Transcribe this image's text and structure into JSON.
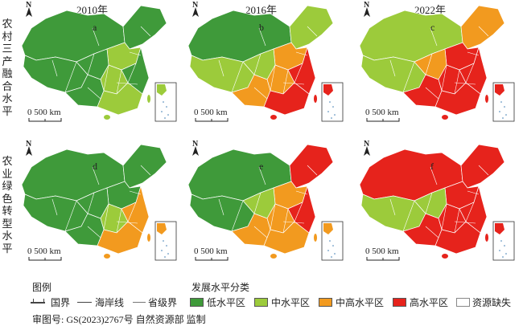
{
  "row_labels": [
    "农村三产融合水平",
    "农业绿色转型水平"
  ],
  "years": [
    "2010年",
    "2016年",
    "2022年"
  ],
  "panels": [
    {
      "label": "a",
      "palette": [
        "#3f9a3a",
        "#3f9a3a",
        "#3f9a3a",
        "#9ccb3b",
        "#3f9a3a",
        "#9ccb3b",
        "#3f9a3a",
        "#3f9a3a",
        "#9ccb3b"
      ]
    },
    {
      "label": "b",
      "palette": [
        "#3f9a3a",
        "#9ccb3b",
        "#9ccb3b",
        "#f29a1f",
        "#9ccb3b",
        "#f29a1f",
        "#e6231c",
        "#f29a1f",
        "#e6231c"
      ]
    },
    {
      "label": "c",
      "palette": [
        "#9ccb3b",
        "#9ccb3b",
        "#f29a1f",
        "#e6231c",
        "#f29a1f",
        "#e6231c",
        "#e6231c",
        "#e6231c",
        "#e6231c"
      ]
    },
    {
      "label": "d",
      "palette": [
        "#3f9a3a",
        "#3f9a3a",
        "#3f9a3a",
        "#3f9a3a",
        "#3f9a3a",
        "#9ccb3b",
        "#f29a1f",
        "#3f9a3a",
        "#f29a1f"
      ]
    },
    {
      "label": "e",
      "palette": [
        "#3f9a3a",
        "#3f9a3a",
        "#e6231c",
        "#f29a1f",
        "#9ccb3b",
        "#f29a1f",
        "#e6231c",
        "#f29a1f",
        "#f29a1f"
      ]
    },
    {
      "label": "f",
      "palette": [
        "#e6231c",
        "#9ccb3b",
        "#e6231c",
        "#e6231c",
        "#9ccb3b",
        "#e6231c",
        "#e6231c",
        "#e6231c",
        "#e6231c"
      ]
    }
  ],
  "north_symbol": "N",
  "scale_label": "0 500 km",
  "legend": {
    "title_left": "图例",
    "title_right": "发展水平分类",
    "boundary_items": [
      "国界",
      "海岸线",
      "省级界"
    ],
    "classes": [
      {
        "label": "低水平区",
        "color": "#3f9a3a"
      },
      {
        "label": "中水平区",
        "color": "#9ccb3b"
      },
      {
        "label": "中高水平区",
        "color": "#f29a1f"
      },
      {
        "label": "高水平区",
        "color": "#e6231c"
      },
      {
        "label": "资源缺失",
        "color": "#ffffff"
      }
    ]
  },
  "review_number": "审图号: GS(2023)2767号 自然资源部 监制"
}
